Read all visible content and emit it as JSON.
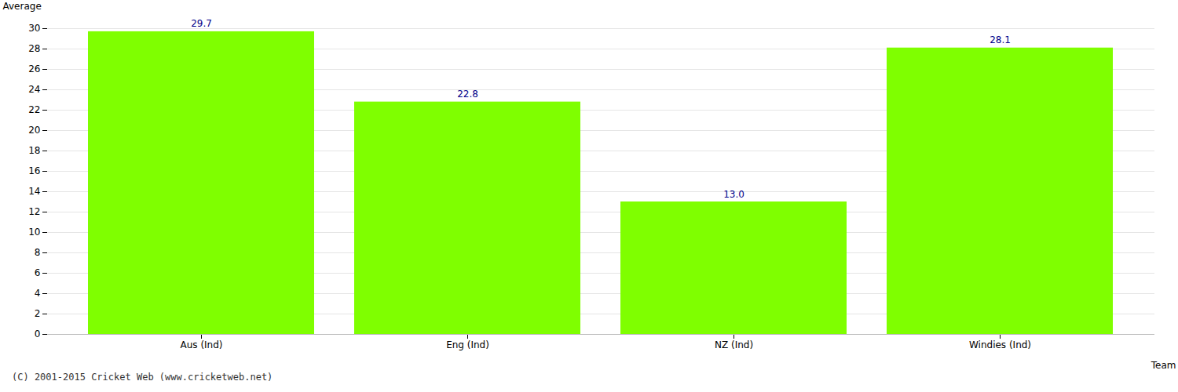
{
  "chart_data": {
    "type": "bar",
    "categories": [
      "Aus (Ind)",
      "Eng (Ind)",
      "NZ (Ind)",
      "Windies (Ind)"
    ],
    "values": [
      29.7,
      22.8,
      13.0,
      28.1
    ],
    "value_labels": [
      "29.7",
      "22.8",
      "13.0",
      "28.1"
    ],
    "data_labels": true,
    "color": "#7FFF00",
    "xlabel": "Team",
    "ylabel": "Average",
    "ylim": [
      0,
      30
    ],
    "yticks": [
      0,
      2,
      4,
      6,
      8,
      10,
      12,
      14,
      16,
      18,
      20,
      22,
      24,
      26,
      28,
      30
    ],
    "grid": true,
    "annotations": [
      "(C) 2001-2015 Cricket Web (www.cricketweb.net)"
    ]
  }
}
